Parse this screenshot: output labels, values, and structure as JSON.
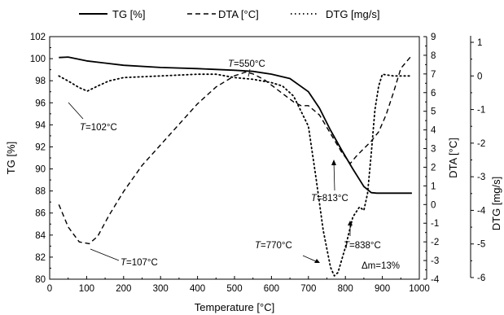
{
  "chart_data": {
    "type": "line",
    "legend": {
      "placement": "top",
      "entries": [
        {
          "label": "TG [%]",
          "style": "solid"
        },
        {
          "label": "DTA [°C]",
          "style": "dashed"
        },
        {
          "label": "DTG [mg/s]",
          "style": "dotted"
        }
      ]
    },
    "xlabel": "Temperature [°C]",
    "ylabel_left": "TG [%]",
    "ylabel_right1": "DTA [°C]",
    "ylabel_right2": "DTG [mg/s]",
    "xlim": [
      0,
      1000
    ],
    "ylim_left": [
      80,
      102
    ],
    "ylim_right1": [
      -4,
      9
    ],
    "ylim_right2": [
      -6,
      1
    ],
    "x_ticks": [
      "0",
      "100",
      "200",
      "300",
      "400",
      "500",
      "600",
      "700",
      "800",
      "900",
      "1000"
    ],
    "y_left_ticks": [
      "80",
      "82",
      "84",
      "86",
      "88",
      "90",
      "92",
      "94",
      "96",
      "98",
      "100",
      "102"
    ],
    "y_right1_ticks": [
      "-4",
      "-3",
      "-2",
      "-1",
      "0",
      "1",
      "2",
      "3",
      "4",
      "5",
      "6",
      "7",
      "8",
      "9"
    ],
    "y_right2_ticks": [
      "-6",
      "-5",
      "-4",
      "-3",
      "-2",
      "-1",
      "0",
      "1"
    ],
    "grid": false,
    "series": [
      {
        "name": "TG [%]",
        "axis": "left",
        "x": [
          25,
          50,
          100,
          200,
          300,
          400,
          500,
          550,
          600,
          650,
          700,
          730,
          760,
          790,
          820,
          850,
          870,
          885,
          900,
          950,
          980
        ],
        "y": [
          100.1,
          100.15,
          99.8,
          99.4,
          99.2,
          99.1,
          98.95,
          98.85,
          98.6,
          98.2,
          97.0,
          95.5,
          93.5,
          91.7,
          90.0,
          88.4,
          87.85,
          87.8,
          87.8,
          87.8,
          87.8
        ]
      },
      {
        "name": "DTA [°C]",
        "axis": "right1",
        "x": [
          25,
          50,
          80,
          107,
          130,
          160,
          200,
          250,
          300,
          350,
          400,
          450,
          500,
          530,
          550,
          580,
          620,
          660,
          680,
          700,
          730,
          760,
          790,
          813,
          830,
          850,
          870,
          890,
          910,
          930,
          950,
          980
        ],
        "y": [
          0.0,
          -1.2,
          -2.0,
          -2.1,
          -1.7,
          -0.6,
          0.7,
          2.1,
          3.2,
          4.3,
          5.4,
          6.3,
          6.9,
          7.1,
          7.0,
          6.7,
          6.1,
          5.5,
          5.3,
          5.3,
          4.8,
          3.8,
          2.8,
          2.2,
          2.6,
          3.0,
          3.4,
          3.9,
          4.8,
          6.0,
          7.3,
          8.0
        ]
      },
      {
        "name": "DTG [mg/s]",
        "axis": "right2",
        "x": [
          25,
          50,
          80,
          102,
          130,
          160,
          200,
          300,
          400,
          450,
          500,
          550,
          600,
          630,
          660,
          700,
          720,
          740,
          760,
          770,
          780,
          800,
          820,
          838,
          850,
          860,
          870,
          880,
          890,
          900,
          930,
          950,
          980
        ],
        "y": [
          0.0,
          -0.15,
          -0.35,
          -0.45,
          -0.3,
          -0.15,
          -0.05,
          0.0,
          0.05,
          0.05,
          -0.05,
          -0.1,
          -0.2,
          -0.3,
          -0.6,
          -1.5,
          -3.0,
          -4.6,
          -5.7,
          -5.95,
          -5.85,
          -5.1,
          -4.2,
          -3.9,
          -4.0,
          -3.5,
          -2.3,
          -1.0,
          -0.3,
          0.05,
          0.0,
          0.0,
          0.0
        ]
      }
    ],
    "annotations": [
      {
        "prefix": "T",
        "text": "=102°C"
      },
      {
        "prefix": "T",
        "text": "=107°C"
      },
      {
        "prefix": "T",
        "text": "=550°C"
      },
      {
        "prefix": "T",
        "text": "=813°C"
      },
      {
        "prefix": "T",
        "text": "=770°C"
      },
      {
        "prefix": "T",
        "text": "=838°C"
      },
      {
        "prefix": "",
        "text": "Δm=13%"
      }
    ]
  }
}
